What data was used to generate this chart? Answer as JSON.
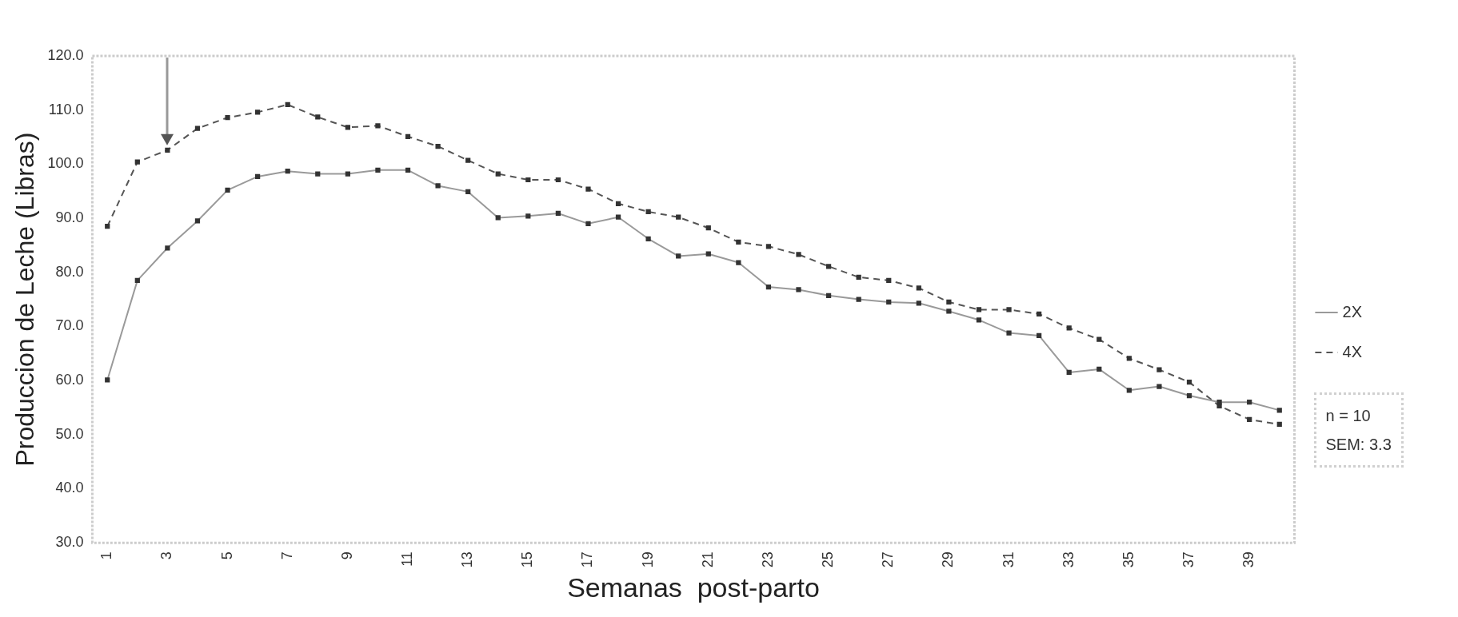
{
  "chart_data": {
    "type": "line",
    "xlabel": "Semanas  post-parto",
    "ylabel": "Produccion de Leche (Libras)",
    "categories": [
      "1",
      null,
      "3",
      null,
      "5",
      null,
      "7",
      null,
      "9",
      null,
      "11",
      null,
      "13",
      null,
      "15",
      null,
      "17",
      null,
      "19",
      null,
      "21",
      null,
      "23",
      null,
      "25",
      null,
      "27",
      null,
      "29",
      null,
      "31",
      null,
      "33",
      null,
      "35",
      null,
      "37",
      null,
      "39",
      null
    ],
    "series": [
      {
        "name": "2X",
        "color": "#9a9a9a",
        "line_style": "solid",
        "values": [
          60.1,
          78.5,
          84.5,
          89.5,
          95.2,
          97.7,
          98.7,
          98.2,
          98.2,
          98.9,
          98.9,
          96.0,
          94.9,
          90.1,
          90.4,
          90.9,
          89.0,
          90.2,
          86.2,
          83.0,
          83.4,
          81.8,
          77.3,
          76.8,
          75.7,
          75.0,
          74.5,
          74.3,
          72.8,
          71.2,
          68.8,
          68.3,
          61.5,
          62.1,
          58.2,
          58.9,
          57.2,
          56.0,
          56.0,
          54.5
        ]
      },
      {
        "name": "4X",
        "color": "#555555",
        "line_style": "dashed",
        "values": [
          88.5,
          100.4,
          102.6,
          106.6,
          108.6,
          109.6,
          111.0,
          108.7,
          106.8,
          107.1,
          105.1,
          103.3,
          100.7,
          98.2,
          97.1,
          97.1,
          95.4,
          92.7,
          91.2,
          90.2,
          88.2,
          85.6,
          84.8,
          83.3,
          81.1,
          79.1,
          78.5,
          77.1,
          74.5,
          73.1,
          73.1,
          72.3,
          69.7,
          67.6,
          64.1,
          62.0,
          59.7,
          55.3,
          52.8,
          51.9
        ]
      }
    ],
    "ylim": [
      30,
      120
    ],
    "yticks": [
      {
        "value": 30,
        "label": "30.0"
      },
      {
        "value": 40,
        "label": "40.0"
      },
      {
        "value": 50,
        "label": "50.0"
      },
      {
        "value": 60,
        "label": "60.0"
      },
      {
        "value": 70,
        "label": "70.0"
      },
      {
        "value": 80,
        "label": "80.0"
      },
      {
        "value": 90,
        "label": "90.0"
      },
      {
        "value": 100,
        "label": "100.0"
      },
      {
        "value": 110,
        "label": "110.0"
      },
      {
        "value": 120,
        "label": "120.0"
      }
    ],
    "marker": "square",
    "legend": "right",
    "annotations": [
      "n = 10",
      "SEM: 3.3"
    ]
  }
}
